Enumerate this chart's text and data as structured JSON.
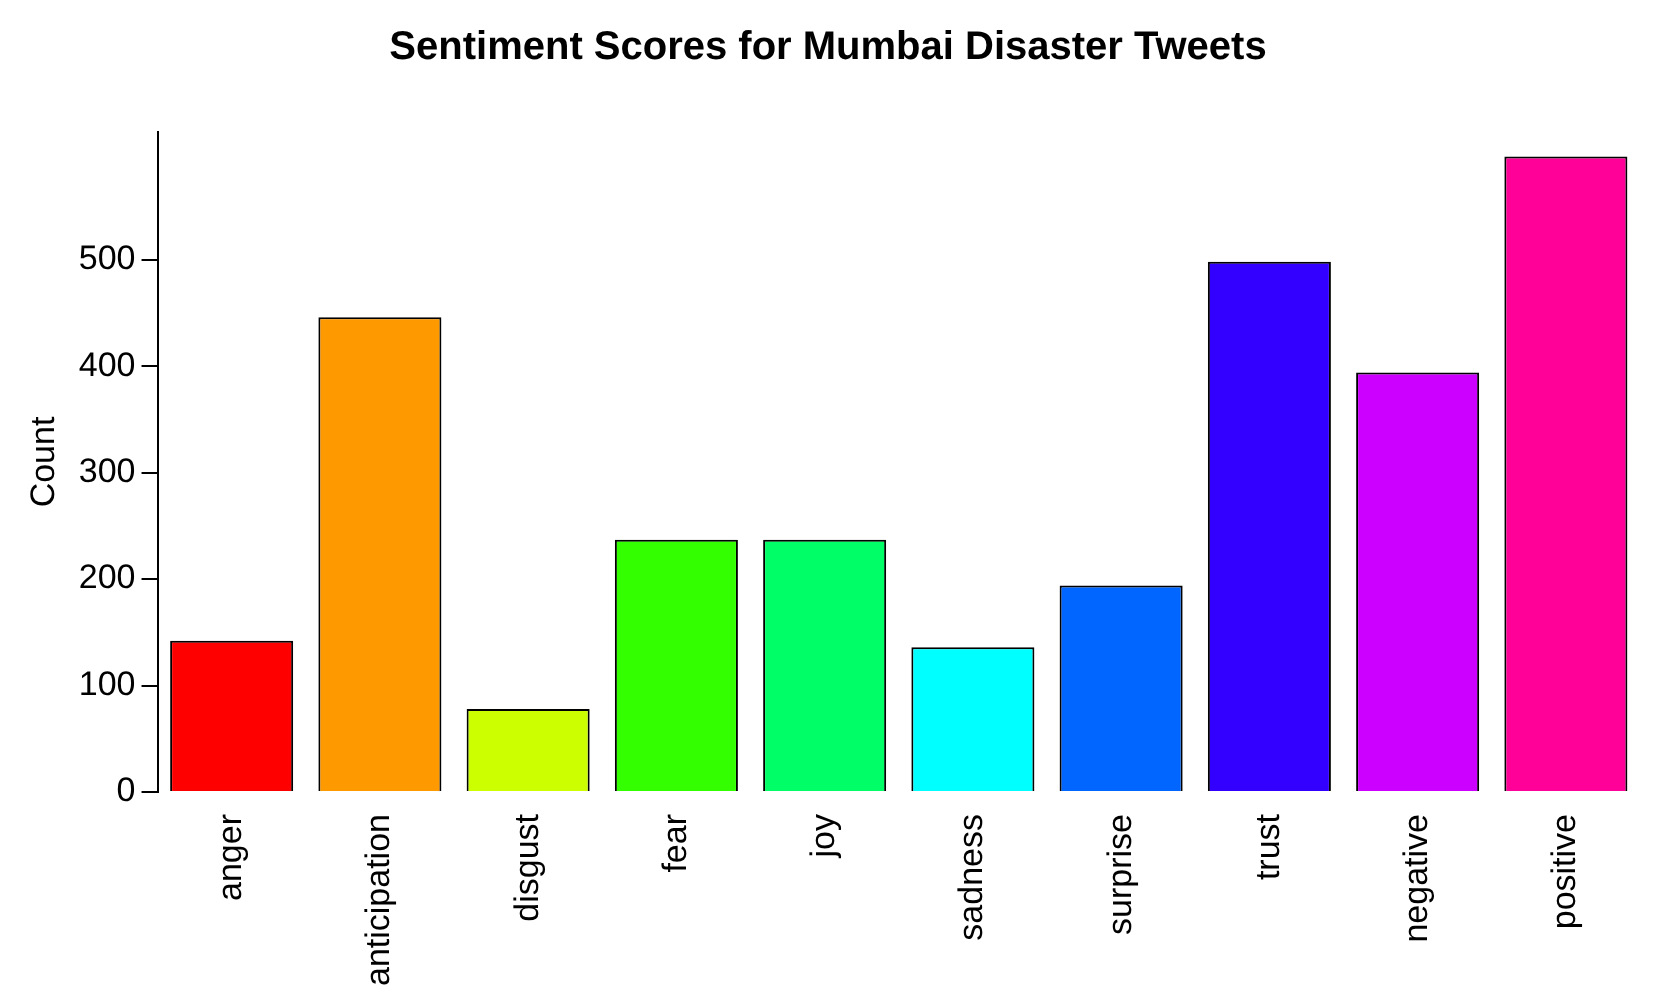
{
  "chart_data": {
    "type": "bar",
    "title": "Sentiment Scores for Mumbai Disaster Tweets",
    "ylabel": "Count",
    "categories": [
      "anger",
      "anticipation",
      "disgust",
      "fear",
      "joy",
      "sadness",
      "surprise",
      "trust",
      "negative",
      "positive"
    ],
    "values": [
      142,
      446,
      78,
      237,
      237,
      136,
      194,
      498,
      394,
      597
    ],
    "colors": [
      "#ff0000",
      "#ff9900",
      "#ccff00",
      "#33ff00",
      "#00ff66",
      "#00ffff",
      "#0066ff",
      "#3300ff",
      "#cc00ff",
      "#ff0099"
    ],
    "ylim": [
      0,
      620
    ],
    "yticks": [
      0,
      100,
      200,
      300,
      400,
      500
    ]
  }
}
